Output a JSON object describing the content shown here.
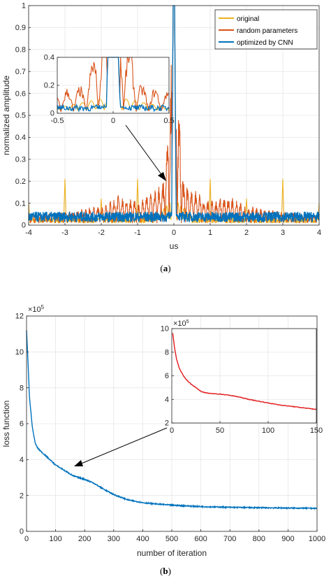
{
  "chart_data": [
    {
      "type": "line",
      "panel_label": "(a)",
      "xlabel": "us",
      "ylabel": "normalized amplitude",
      "xlim": [
        -4,
        4
      ],
      "ylim": [
        0,
        1
      ],
      "xticks": [
        -4,
        -3,
        -2,
        -1,
        0,
        1,
        2,
        3,
        4
      ],
      "yticks": [
        0,
        0.1,
        0.2,
        0.3,
        0.4,
        0.5,
        0.6,
        0.7,
        0.8,
        0.9,
        1
      ],
      "grid": true,
      "legend": "top-right",
      "series": [
        {
          "name": "original",
          "color": "#EDB120",
          "description_points": [
            [
              -4,
              0.08
            ],
            [
              -3,
              0.19
            ],
            [
              -2,
              0.1
            ],
            [
              -1,
              0.19
            ],
            [
              0,
              1.0
            ],
            [
              1,
              0.19
            ],
            [
              2,
              0.1
            ],
            [
              3,
              0.19
            ],
            [
              4,
              0.08
            ]
          ],
          "baseline": 0.02
        },
        {
          "name": "random parameters",
          "color": "#D95319",
          "description_points": [
            [
              -4,
              0.04
            ],
            [
              -3,
              0.05
            ],
            [
              -2,
              0.08
            ],
            [
              -1.5,
              0.13
            ],
            [
              -1,
              0.1
            ],
            [
              -0.5,
              0.16
            ],
            [
              -0.25,
              0.2
            ],
            [
              0,
              1.0
            ],
            [
              0.25,
              0.2
            ],
            [
              0.5,
              0.16
            ],
            [
              1,
              0.1
            ],
            [
              1.5,
              0.13
            ],
            [
              2,
              0.08
            ],
            [
              3,
              0.05
            ],
            [
              4,
              0.04
            ]
          ],
          "baseline": 0.06
        },
        {
          "name": "optimized by CNN",
          "color": "#0072BD",
          "description_points": [
            [
              -4,
              0.03
            ],
            [
              -3,
              0.05
            ],
            [
              -2,
              0.05
            ],
            [
              -1,
              0.05
            ],
            [
              0,
              1.0
            ],
            [
              1,
              0.05
            ],
            [
              2,
              0.05
            ],
            [
              3,
              0.05
            ],
            [
              4,
              0.03
            ]
          ],
          "baseline": 0.04
        }
      ],
      "inset": {
        "xlim": [
          -0.5,
          0.5
        ],
        "ylim": [
          0,
          0.4
        ],
        "xticks": [
          -0.5,
          0,
          0.5
        ],
        "yticks": [
          0,
          0.2,
          0.4
        ]
      }
    },
    {
      "type": "line",
      "panel_label": "(b)",
      "xlabel": "number of iteration",
      "ylabel": "loss function",
      "y_exponent": "×10",
      "y_exponent_power": "5",
      "xlim": [
        0,
        1000
      ],
      "ylim": [
        0,
        12
      ],
      "xticks": [
        0,
        100,
        200,
        300,
        400,
        500,
        600,
        700,
        800,
        900,
        1000
      ],
      "yticks": [
        0,
        2,
        4,
        6,
        8,
        10,
        12
      ],
      "grid": true,
      "series": [
        {
          "color": "#0072BD",
          "x": [
            0,
            5,
            10,
            20,
            30,
            40,
            60,
            80,
            100,
            130,
            160,
            200,
            230,
            260,
            300,
            350,
            400,
            450,
            500,
            550,
            600,
            700,
            800,
            900,
            1000
          ],
          "y": [
            11.2,
            9.5,
            7.5,
            5.8,
            4.9,
            4.6,
            4.3,
            4.0,
            3.7,
            3.4,
            3.1,
            2.9,
            2.7,
            2.4,
            2.05,
            1.75,
            1.6,
            1.52,
            1.46,
            1.42,
            1.38,
            1.34,
            1.32,
            1.3,
            1.28
          ]
        }
      ],
      "inset": {
        "xlim": [
          0,
          150
        ],
        "ylim": [
          2,
          10
        ],
        "xticks": [
          0,
          50,
          100,
          150
        ],
        "yticks": [
          2,
          4,
          6,
          8,
          10
        ],
        "y_exponent": "×10",
        "y_exponent_power": "5",
        "series": [
          {
            "color": "#E41A1C",
            "x": [
              1,
              3,
              5,
              8,
              12,
              16,
              20,
              25,
              30,
              35,
              40,
              50,
              60,
              70,
              80,
              90,
              100,
              110,
              120,
              130,
              140,
              150
            ],
            "y": [
              9.6,
              8.3,
              7.4,
              6.6,
              6.0,
              5.6,
              5.3,
              5.0,
              4.7,
              4.55,
              4.5,
              4.45,
              4.35,
              4.2,
              4.0,
              3.85,
              3.7,
              3.55,
              3.45,
              3.35,
              3.25,
              3.15
            ]
          }
        ]
      }
    }
  ]
}
